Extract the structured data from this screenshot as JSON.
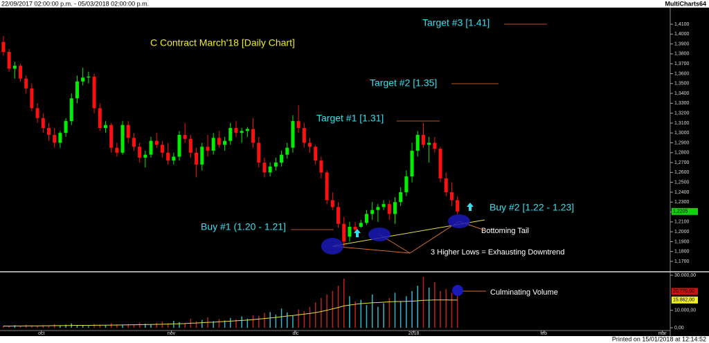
{
  "header": {
    "range": "22/09/2017 02:00:00 p.m. - 05/03/2018 02:00:00 p.m.",
    "app": "MultiCharts64"
  },
  "footer": "Printed on 15/01/2018 at 12:14:52",
  "chart_data": {
    "type": "candlestick",
    "title": "C Contract March'18  [Daily Chart]",
    "up_color": "#00ee00",
    "down_color": "#ff1010",
    "open": [
      1.392,
      1.382,
      1.365,
      1.368,
      1.355,
      1.345,
      1.325,
      1.315,
      1.305,
      1.298,
      1.29,
      1.3,
      1.312,
      1.335,
      1.352,
      1.356,
      1.357,
      1.325,
      1.305,
      1.308,
      1.285,
      1.28,
      1.308,
      1.295,
      1.286,
      1.275,
      1.278,
      1.292,
      1.288,
      1.28,
      1.272,
      1.276,
      1.298,
      1.294,
      1.28,
      1.268,
      1.286,
      1.282,
      1.295,
      1.288,
      1.292,
      1.305,
      1.3,
      1.302,
      1.304,
      1.29,
      1.27,
      1.26,
      1.266,
      1.27,
      1.278,
      1.285,
      1.312,
      1.305,
      1.29,
      1.286,
      1.272,
      1.26,
      1.232,
      1.225,
      1.208,
      1.195,
      1.205,
      1.205,
      1.209,
      1.218,
      1.222,
      1.225,
      1.228,
      1.218,
      1.23,
      1.24,
      1.256,
      1.282,
      1.298,
      1.288,
      1.29,
      1.284,
      1.254,
      1.24,
      1.232
    ],
    "high": [
      1.398,
      1.385,
      1.372,
      1.37,
      1.358,
      1.35,
      1.33,
      1.32,
      1.31,
      1.305,
      1.302,
      1.315,
      1.34,
      1.358,
      1.366,
      1.362,
      1.36,
      1.33,
      1.312,
      1.31,
      1.29,
      1.312,
      1.312,
      1.3,
      1.29,
      1.282,
      1.296,
      1.3,
      1.292,
      1.29,
      1.28,
      1.302,
      1.31,
      1.298,
      1.285,
      1.29,
      1.298,
      1.3,
      1.302,
      1.296,
      1.31,
      1.312,
      1.305,
      1.306,
      1.315,
      1.296,
      1.275,
      1.27,
      1.275,
      1.282,
      1.29,
      1.318,
      1.328,
      1.31,
      1.295,
      1.288,
      1.276,
      1.262,
      1.24,
      1.23,
      1.215,
      1.21,
      1.21,
      1.212,
      1.222,
      1.23,
      1.228,
      1.232,
      1.232,
      1.235,
      1.245,
      1.262,
      1.29,
      1.302,
      1.31,
      1.296,
      1.296,
      1.286,
      1.26,
      1.25,
      1.236
    ],
    "low": [
      1.378,
      1.362,
      1.355,
      1.352,
      1.34,
      1.322,
      1.31,
      1.3,
      1.292,
      1.285,
      1.285,
      1.296,
      1.308,
      1.33,
      1.348,
      1.35,
      1.32,
      1.302,
      1.3,
      1.28,
      1.276,
      1.278,
      1.29,
      1.282,
      1.27,
      1.265,
      1.275,
      1.285,
      1.275,
      1.268,
      1.268,
      1.272,
      1.29,
      1.275,
      1.255,
      1.262,
      1.276,
      1.278,
      1.285,
      1.282,
      1.288,
      1.296,
      1.29,
      1.296,
      1.285,
      1.265,
      1.255,
      1.256,
      1.262,
      1.266,
      1.274,
      1.28,
      1.3,
      1.285,
      1.28,
      1.268,
      1.254,
      1.228,
      1.222,
      1.204,
      1.185,
      1.19,
      1.2,
      1.204,
      1.207,
      1.212,
      1.21,
      1.222,
      1.212,
      1.208,
      1.226,
      1.236,
      1.25,
      1.276,
      1.285,
      1.27,
      1.28,
      1.25,
      1.236,
      1.226,
      1.218
    ],
    "close": [
      1.382,
      1.365,
      1.368,
      1.355,
      1.345,
      1.325,
      1.315,
      1.305,
      1.298,
      1.29,
      1.3,
      1.312,
      1.335,
      1.352,
      1.356,
      1.357,
      1.325,
      1.305,
      1.308,
      1.285,
      1.28,
      1.308,
      1.295,
      1.286,
      1.275,
      1.278,
      1.292,
      1.288,
      1.28,
      1.272,
      1.276,
      1.298,
      1.294,
      1.28,
      1.268,
      1.286,
      1.282,
      1.295,
      1.288,
      1.292,
      1.305,
      1.3,
      1.302,
      1.304,
      1.29,
      1.27,
      1.26,
      1.266,
      1.27,
      1.278,
      1.285,
      1.312,
      1.305,
      1.29,
      1.286,
      1.272,
      1.26,
      1.232,
      1.225,
      1.208,
      1.19,
      1.205,
      1.202,
      1.209,
      1.218,
      1.222,
      1.225,
      1.228,
      1.218,
      1.23,
      1.24,
      1.256,
      1.282,
      1.298,
      1.288,
      1.29,
      1.284,
      1.254,
      1.24,
      1.232,
      1.2205
    ],
    "last_label": {
      "value": 1.2205,
      "label": "1,2205"
    },
    "xlim": [
      -0.6,
      117.5
    ],
    "xticks": [
      {
        "value": 6.7,
        "label": "oct"
      },
      {
        "value": 29.6,
        "label": "nov"
      },
      {
        "value": 51.5,
        "label": "dic"
      },
      {
        "value": 72.3,
        "label": "2018"
      },
      {
        "value": 95.2,
        "label": "feb"
      },
      {
        "value": 116.1,
        "label": "mar"
      }
    ],
    "ylim": [
      1.1616,
      1.4191
    ],
    "yticks": [
      {
        "value": 1.17,
        "label": "1,1700"
      },
      {
        "value": 1.18,
        "label": "1,1800"
      },
      {
        "value": 1.19,
        "label": "1,1900"
      },
      {
        "value": 1.2,
        "label": "1,2000"
      },
      {
        "value": 1.21,
        "label": "1,2100"
      },
      {
        "value": 1.22,
        "label": "1,2200"
      },
      {
        "value": 1.23,
        "label": "1,2300"
      },
      {
        "value": 1.24,
        "label": "1,2400"
      },
      {
        "value": 1.25,
        "label": "1,2500"
      },
      {
        "value": 1.26,
        "label": "1,2600"
      },
      {
        "value": 1.27,
        "label": "1,2700"
      },
      {
        "value": 1.28,
        "label": "1,2800"
      },
      {
        "value": 1.29,
        "label": "1,2900"
      },
      {
        "value": 1.3,
        "label": "1,3000"
      },
      {
        "value": 1.31,
        "label": "1,3100"
      },
      {
        "value": 1.32,
        "label": "1,3200"
      },
      {
        "value": 1.33,
        "label": "1,3300"
      },
      {
        "value": 1.34,
        "label": "1,3400"
      },
      {
        "value": 1.35,
        "label": "1,3500"
      },
      {
        "value": 1.36,
        "label": "1,3600"
      },
      {
        "value": 1.37,
        "label": "1,3700"
      },
      {
        "value": 1.38,
        "label": "1,3800"
      },
      {
        "value": 1.39,
        "label": "1,3900"
      },
      {
        "value": 1.4,
        "label": "1,4000"
      },
      {
        "value": 1.41,
        "label": "1,4100"
      }
    ],
    "volume": {
      "values": [
        1200,
        900,
        1500,
        1100,
        1800,
        1300,
        1000,
        1600,
        1400,
        2000,
        1200,
        1800,
        2500,
        1500,
        1300,
        1000,
        2200,
        1700,
        1400,
        2600,
        1900,
        1500,
        2100,
        1800,
        3000,
        2400,
        2000,
        2800,
        3500,
        2600,
        4000,
        3200,
        2800,
        5200,
        3600,
        4500,
        6000,
        3800,
        5000,
        4200,
        5600,
        4800,
        6500,
        5200,
        7200,
        6800,
        8500,
        9000,
        7500,
        11000,
        8800,
        7000,
        10500,
        9500,
        12000,
        14500,
        17000,
        19000,
        21000,
        24000,
        28000,
        18000,
        15000,
        16000,
        13000,
        19000,
        12000,
        14000,
        17000,
        20000,
        15000,
        18000,
        21000,
        24000,
        29000,
        23000,
        26000,
        21000,
        22000,
        20000,
        20770
      ],
      "average": [
        1000,
        1000,
        1050,
        1050,
        1100,
        1100,
        1100,
        1150,
        1200,
        1250,
        1250,
        1300,
        1350,
        1400,
        1400,
        1400,
        1450,
        1500,
        1500,
        1550,
        1600,
        1650,
        1700,
        1750,
        1800,
        1850,
        1900,
        1950,
        2000,
        2100,
        2200,
        2300,
        2400,
        2600,
        2700,
        2900,
        3100,
        3200,
        3400,
        3600,
        3800,
        4000,
        4200,
        4400,
        4700,
        5000,
        5300,
        5600,
        5900,
        6300,
        6700,
        7000,
        7400,
        7800,
        8200,
        8700,
        9300,
        10000,
        10800,
        11600,
        12500,
        13000,
        13400,
        13800,
        14000,
        14300,
        14400,
        14600,
        14800,
        15000,
        15000,
        15100,
        15200,
        15400,
        15700,
        15800,
        15900,
        15900,
        15900,
        15850,
        15862
      ],
      "average_color": "#e8e04a",
      "ylim": [
        0,
        30800
      ],
      "yticks": [
        {
          "value": 0,
          "label": "0,00"
        },
        {
          "value": 10000,
          "label": "10.000,00"
        },
        {
          "value": 30000,
          "label": "30.000,00"
        }
      ],
      "last_label": {
        "value": 20770,
        "label": "20.770,00"
      },
      "average_label": {
        "value": 15862,
        "label": "15.862,00"
      }
    },
    "annotations": {
      "target3": "Target #3 [1.41]",
      "target2": "Target #2 [1.35]",
      "target1": "Target #1 [1.31]",
      "buy2": "Buy #2 [1.22 - 1.23]",
      "buy1": "Buy #1 (1.20 - 1.21]",
      "tail": "Bottoming Tail",
      "lows": "3 Higher Lows = Exhausting Downtrend",
      "volume": "Culminating Volume"
    }
  }
}
